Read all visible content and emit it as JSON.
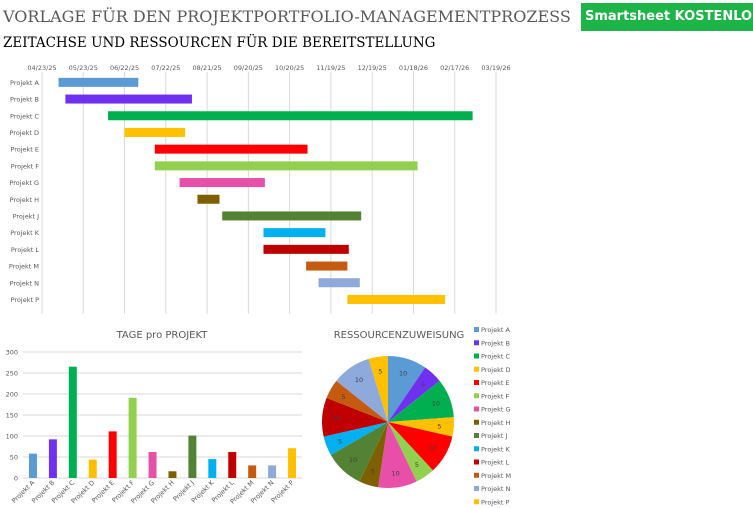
{
  "header": {
    "title": "VORLAGE FÜR DEN PROJEKTPORTFOLIO-MANAGEMENTPROZESS",
    "subtitle": "ZEITACHSE UND RESSOURCEN FÜR DIE BEREITSTELLUNG",
    "cta_label": "Smartsheet KOSTENLOS tes"
  },
  "colors": {
    "cta": "#1db547"
  },
  "chart_data": [
    {
      "type": "gantt",
      "axis_ticks": [
        "04/23/25",
        "05/23/25",
        "06/22/25",
        "07/22/25",
        "08/21/25",
        "09/20/25",
        "10/20/25",
        "11/19/25",
        "12/19/25",
        "01/18/26",
        "02/17/26",
        "03/19/26"
      ],
      "x_start": "04/23/25",
      "x_range_days": [
        0,
        330
      ],
      "tick_step_days": 30,
      "categories": [
        "Projekt A",
        "Projekt B",
        "Projekt C",
        "Projekt D",
        "Projekt E",
        "Projekt F",
        "Projekt G",
        "Projekt H",
        "Projekt J",
        "Projekt K",
        "Projekt L",
        "Projekt M",
        "Projekt N",
        "Projekt P"
      ],
      "start_day": [
        12,
        17,
        48,
        60,
        82,
        82,
        100,
        113,
        131,
        161,
        161,
        192,
        201,
        222
      ],
      "duration_days": [
        58,
        92,
        265,
        44,
        111,
        191,
        62,
        16,
        101,
        45,
        62,
        30,
        30,
        71
      ],
      "colors": [
        "#5b9bd5",
        "#7030f0",
        "#00b050",
        "#ffc000",
        "#ff0000",
        "#92d050",
        "#e84fa8",
        "#7f6000",
        "#548235",
        "#00b0f0",
        "#c00000",
        "#c55a11",
        "#8ea9db",
        "#ffc000"
      ]
    },
    {
      "type": "bar",
      "title": "TAGE pro PROJEKT",
      "categories": [
        "Projekt A",
        "Projekt B",
        "Projekt C",
        "Projekt D",
        "Projekt E",
        "Projekt F",
        "Projekt G",
        "Projekt H",
        "Projekt J",
        "Projekt K",
        "Projekt L",
        "Projekt M",
        "Projekt N",
        "Projekt P"
      ],
      "values": [
        58,
        92,
        265,
        44,
        111,
        191,
        62,
        16,
        101,
        45,
        62,
        30,
        30,
        71
      ],
      "yticks": [
        0,
        50,
        100,
        150,
        200,
        250,
        300
      ],
      "ylim": [
        0,
        300
      ],
      "colors": [
        "#5b9bd5",
        "#7030f0",
        "#00b050",
        "#ffc000",
        "#ff0000",
        "#92d050",
        "#e84fa8",
        "#7f6000",
        "#548235",
        "#00b0f0",
        "#c00000",
        "#c55a11",
        "#8ea9db",
        "#ffc000"
      ]
    },
    {
      "type": "pie",
      "title": "RESSOURCENZUWEISUNG",
      "labels": [
        "Projekt A",
        "Projekt B",
        "Projekt C",
        "Projekt D",
        "Projekt E",
        "Projekt F",
        "Projekt G",
        "Projekt H",
        "Projekt J",
        "Projekt K",
        "Projekt L",
        "Projekt M",
        "Projekt N",
        "Projekt P"
      ],
      "values": [
        10,
        5,
        10,
        5,
        10,
        5,
        10,
        5,
        10,
        5,
        10,
        5,
        10,
        5
      ],
      "colors": [
        "#5b9bd5",
        "#7030f0",
        "#00b050",
        "#ffc000",
        "#ff0000",
        "#92d050",
        "#e84fa8",
        "#7f6000",
        "#548235",
        "#00b0f0",
        "#c00000",
        "#c55a11",
        "#8ea9db",
        "#ffc000"
      ],
      "legend_position": "right"
    }
  ]
}
